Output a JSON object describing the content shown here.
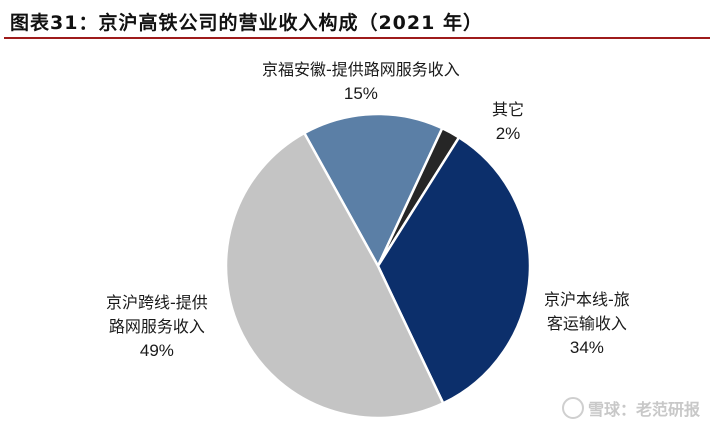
{
  "header": {
    "figure_no": "图表31：",
    "title": "京沪高铁公司的营业收入构成（2021 年）"
  },
  "chart_data": {
    "type": "pie",
    "title": "京沪高铁公司的营业收入构成（2021 年）",
    "slices": [
      {
        "label_lines": [
          "京福安徽-提供路网服务收入"
        ],
        "percent_label": "15%",
        "value": 15,
        "color": "#5b7fa6"
      },
      {
        "label_lines": [
          "其它"
        ],
        "percent_label": "2%",
        "value": 2,
        "color": "#262626"
      },
      {
        "label_lines": [
          "京沪本线-旅",
          "客运输收入"
        ],
        "percent_label": "34%",
        "value": 34,
        "color": "#0c2f6b"
      },
      {
        "label_lines": [
          "京沪跨线-提供",
          "路网服务收入"
        ],
        "percent_label": "49%",
        "value": 49,
        "color": "#c4c4c4"
      }
    ]
  },
  "watermark": {
    "text": "雪球：老范研报"
  }
}
